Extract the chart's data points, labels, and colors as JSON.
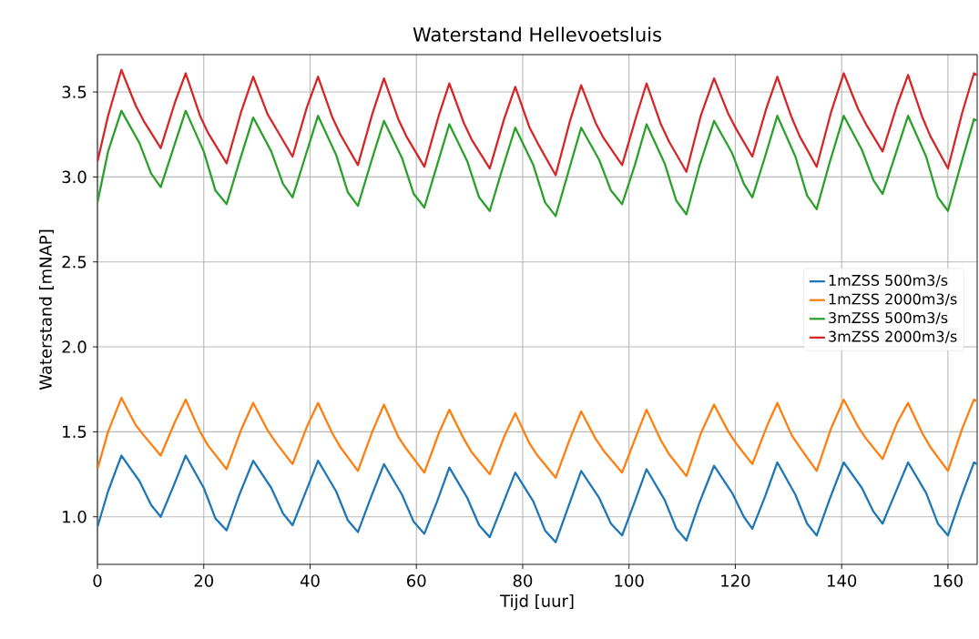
{
  "chart_data": {
    "type": "line",
    "title": "Waterstand Hellevoetsluis",
    "xlabel": "Tijd [uur]",
    "ylabel": "Waterstand [mNAP]",
    "xlim": [
      0,
      165.5
    ],
    "ylim": [
      0.72,
      3.72
    ],
    "xticks": [
      0,
      20,
      40,
      60,
      80,
      100,
      120,
      140,
      160
    ],
    "yticks": [
      {
        "value": 1.0,
        "label": "1.0"
      },
      {
        "value": 1.5,
        "label": "1.5"
      },
      {
        "value": 2.0,
        "label": "2.0"
      },
      {
        "value": 2.5,
        "label": "2.5"
      },
      {
        "value": 3.0,
        "label": "3.0"
      },
      {
        "value": 3.5,
        "label": "3.5"
      }
    ],
    "grid": true,
    "legend": "right",
    "series": [
      {
        "name": "1mZSS 500m3/s",
        "color": "#1f77b4",
        "x": [
          0,
          2.0,
          4.5,
          7.9,
          10.1,
          11.9,
          14.3,
          16.6,
          20.0,
          22.2,
          24.3,
          26.7,
          29.3,
          32.7,
          34.9,
          36.7,
          39.1,
          41.5,
          44.9,
          47.1,
          49.0,
          51.4,
          53.9,
          57.3,
          59.5,
          61.5,
          63.9,
          66.2,
          69.6,
          71.8,
          73.8,
          76.2,
          78.6,
          82.0,
          84.2,
          86.2,
          88.6,
          91.0,
          94.4,
          96.6,
          98.7,
          101.1,
          103.3,
          106.7,
          108.9,
          110.8,
          113.2,
          116.0,
          119.4,
          121.6,
          123.2,
          125.6,
          127.9,
          131.3,
          133.5,
          135.3,
          137.7,
          140.4,
          143.8,
          146.0,
          147.7,
          150.1,
          152.5,
          155.9,
          158.1,
          160.0,
          162.4,
          164.9,
          165.5
        ],
        "values": [
          0.94,
          1.15,
          1.36,
          1.21,
          1.07,
          1.0,
          1.18,
          1.36,
          1.17,
          0.99,
          0.92,
          1.13,
          1.33,
          1.17,
          1.02,
          0.95,
          1.14,
          1.33,
          1.15,
          0.98,
          0.91,
          1.11,
          1.31,
          1.13,
          0.97,
          0.9,
          1.09,
          1.29,
          1.11,
          0.95,
          0.88,
          1.07,
          1.26,
          1.09,
          0.92,
          0.85,
          1.06,
          1.27,
          1.11,
          0.96,
          0.89,
          1.09,
          1.28,
          1.1,
          0.93,
          0.86,
          1.08,
          1.3,
          1.14,
          1.0,
          0.93,
          1.12,
          1.32,
          1.13,
          0.96,
          0.89,
          1.1,
          1.32,
          1.17,
          1.03,
          0.96,
          1.14,
          1.32,
          1.14,
          0.96,
          0.89,
          1.11,
          1.32,
          1.31
        ]
      },
      {
        "name": "1mZSS 2000m3/s",
        "color": "#ff7f0e",
        "x": [
          0,
          2.0,
          4.5,
          7.2,
          8.7,
          11.9,
          14.6,
          16.6,
          19.3,
          20.8,
          24.3,
          27.0,
          29.3,
          32.0,
          33.5,
          36.7,
          39.4,
          41.5,
          44.2,
          45.7,
          49.0,
          51.7,
          53.9,
          56.6,
          58.1,
          61.5,
          64.2,
          66.2,
          68.9,
          70.4,
          73.8,
          76.5,
          78.6,
          81.3,
          82.8,
          86.2,
          88.9,
          91.0,
          93.7,
          95.2,
          98.7,
          101.4,
          103.3,
          106.0,
          107.5,
          110.8,
          113.5,
          116.0,
          118.7,
          120.2,
          123.2,
          125.9,
          127.9,
          130.6,
          132.1,
          135.3,
          138.0,
          140.4,
          143.1,
          144.6,
          147.7,
          150.4,
          152.5,
          155.2,
          156.7,
          160.0,
          162.7,
          164.9,
          165.5
        ],
        "values": [
          1.28,
          1.5,
          1.7,
          1.54,
          1.48,
          1.36,
          1.56,
          1.69,
          1.5,
          1.42,
          1.28,
          1.51,
          1.67,
          1.51,
          1.44,
          1.31,
          1.53,
          1.67,
          1.49,
          1.41,
          1.27,
          1.5,
          1.66,
          1.47,
          1.4,
          1.26,
          1.49,
          1.63,
          1.46,
          1.38,
          1.25,
          1.47,
          1.61,
          1.43,
          1.36,
          1.23,
          1.46,
          1.62,
          1.46,
          1.39,
          1.26,
          1.48,
          1.63,
          1.45,
          1.37,
          1.24,
          1.49,
          1.66,
          1.5,
          1.43,
          1.31,
          1.53,
          1.67,
          1.48,
          1.41,
          1.27,
          1.52,
          1.69,
          1.53,
          1.46,
          1.34,
          1.55,
          1.67,
          1.49,
          1.41,
          1.27,
          1.52,
          1.69,
          1.68
        ]
      },
      {
        "name": "3mZSS 500m3/s",
        "color": "#2ca02c",
        "x": [
          0,
          2.0,
          4.5,
          7.9,
          10.1,
          11.9,
          14.3,
          16.6,
          20.0,
          22.2,
          24.3,
          26.7,
          29.3,
          32.7,
          34.9,
          36.7,
          39.1,
          41.5,
          44.9,
          47.1,
          49.0,
          51.4,
          53.9,
          57.3,
          59.5,
          61.5,
          63.9,
          66.2,
          69.6,
          71.8,
          73.8,
          76.2,
          78.6,
          82.0,
          84.2,
          86.2,
          88.6,
          91.0,
          94.4,
          96.6,
          98.7,
          101.1,
          103.3,
          106.7,
          108.9,
          110.8,
          113.2,
          116.0,
          119.4,
          121.6,
          123.2,
          125.6,
          127.9,
          131.3,
          133.5,
          135.3,
          137.7,
          140.4,
          143.8,
          146.0,
          147.7,
          150.1,
          152.5,
          155.9,
          158.1,
          160.0,
          162.4,
          164.9,
          165.5
        ],
        "values": [
          2.85,
          3.15,
          3.39,
          3.2,
          3.02,
          2.94,
          3.17,
          3.39,
          3.15,
          2.92,
          2.84,
          3.09,
          3.35,
          3.15,
          2.96,
          2.88,
          3.12,
          3.36,
          3.13,
          2.91,
          2.83,
          3.08,
          3.33,
          3.11,
          2.9,
          2.82,
          3.07,
          3.31,
          3.09,
          2.88,
          2.8,
          3.05,
          3.29,
          3.07,
          2.85,
          2.77,
          3.03,
          3.29,
          3.1,
          2.92,
          2.84,
          3.07,
          3.31,
          3.08,
          2.86,
          2.78,
          3.06,
          3.33,
          3.14,
          2.96,
          2.88,
          3.12,
          3.36,
          3.12,
          2.89,
          2.81,
          3.08,
          3.36,
          3.16,
          2.98,
          2.9,
          3.13,
          3.36,
          3.12,
          2.88,
          2.8,
          3.07,
          3.34,
          3.33
        ]
      },
      {
        "name": "3mZSS 2000m3/s",
        "color": "#d62728",
        "x": [
          0,
          2.0,
          4.5,
          7.2,
          8.7,
          11.9,
          14.6,
          16.6,
          19.3,
          20.8,
          24.3,
          27.0,
          29.3,
          32.0,
          33.5,
          36.7,
          39.4,
          41.5,
          44.2,
          45.7,
          49.0,
          51.7,
          53.9,
          56.6,
          58.1,
          61.5,
          64.2,
          66.2,
          68.9,
          70.4,
          73.8,
          76.5,
          78.6,
          81.3,
          82.8,
          86.2,
          88.9,
          91.0,
          93.7,
          95.2,
          98.7,
          101.4,
          103.3,
          106.0,
          107.5,
          110.8,
          113.5,
          116.0,
          118.7,
          120.2,
          123.2,
          125.9,
          127.9,
          130.6,
          132.1,
          135.3,
          138.0,
          140.4,
          143.1,
          144.6,
          147.7,
          150.4,
          152.5,
          155.2,
          156.7,
          160.0,
          162.7,
          164.9,
          165.5
        ],
        "values": [
          3.09,
          3.36,
          3.63,
          3.42,
          3.33,
          3.17,
          3.44,
          3.61,
          3.36,
          3.26,
          3.08,
          3.38,
          3.59,
          3.37,
          3.29,
          3.12,
          3.41,
          3.59,
          3.35,
          3.25,
          3.07,
          3.37,
          3.58,
          3.34,
          3.24,
          3.06,
          3.36,
          3.55,
          3.32,
          3.22,
          3.05,
          3.34,
          3.53,
          3.29,
          3.2,
          3.01,
          3.33,
          3.54,
          3.32,
          3.23,
          3.07,
          3.36,
          3.55,
          3.31,
          3.21,
          3.03,
          3.36,
          3.58,
          3.37,
          3.28,
          3.12,
          3.41,
          3.59,
          3.35,
          3.24,
          3.06,
          3.38,
          3.61,
          3.4,
          3.31,
          3.15,
          3.42,
          3.6,
          3.35,
          3.24,
          3.05,
          3.38,
          3.61,
          3.6
        ]
      }
    ]
  }
}
